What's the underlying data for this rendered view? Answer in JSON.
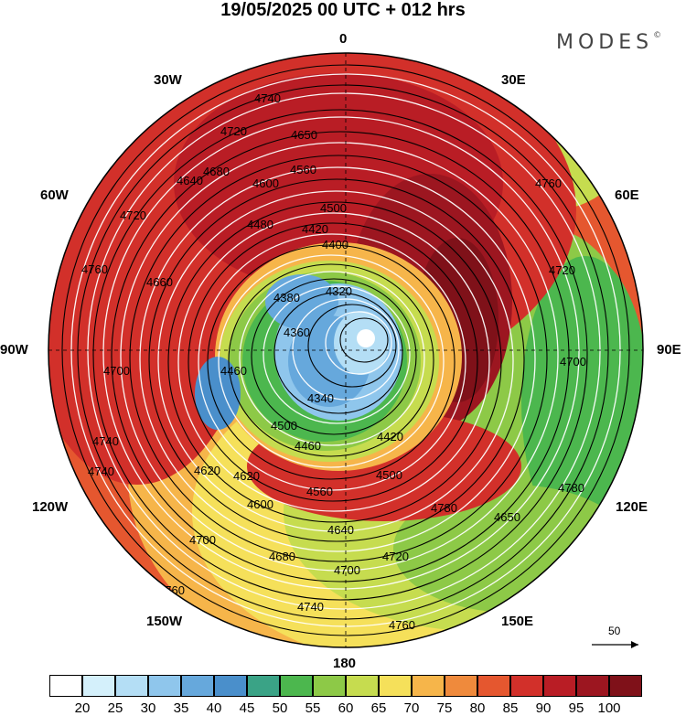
{
  "title": "19/05/2025  00 UTC  + 012 hrs",
  "brand": "MODES",
  "brand_mark": "©",
  "longitude_labels": {
    "l0": "0",
    "l30e": "30E",
    "l60e": "60E",
    "l90e": "90E",
    "l120e": "120E",
    "l150e": "150E",
    "l180": "180",
    "l150w": "150W",
    "l120w": "120W",
    "l90w": "90W",
    "l60w": "60W",
    "l30w": "30W"
  },
  "vector_scale_label": "50",
  "colorbar": {
    "ticks": [
      "20",
      "25",
      "30",
      "35",
      "40",
      "45",
      "50",
      "55",
      "60",
      "65",
      "70",
      "75",
      "80",
      "85",
      "90",
      "95",
      "100"
    ],
    "colors": [
      "#ffffff",
      "#d4f0fb",
      "#b4def5",
      "#8fc6ec",
      "#66a8dc",
      "#4a8fcb",
      "#3aa386",
      "#4cb74e",
      "#8dc947",
      "#c6dc4f",
      "#f5e05a",
      "#f6b54a",
      "#ef8a3c",
      "#e5572f",
      "#d2302a",
      "#b91d25",
      "#9c1620",
      "#7f1119"
    ]
  },
  "contour_labels": [
    "4740",
    "4720",
    "4680",
    "4650",
    "4640",
    "4600",
    "4560",
    "4500",
    "4480",
    "4460",
    "4420",
    "4400",
    "4380",
    "4360",
    "4340",
    "4320",
    "4620",
    "4660",
    "4700",
    "4760",
    "4780"
  ]
}
